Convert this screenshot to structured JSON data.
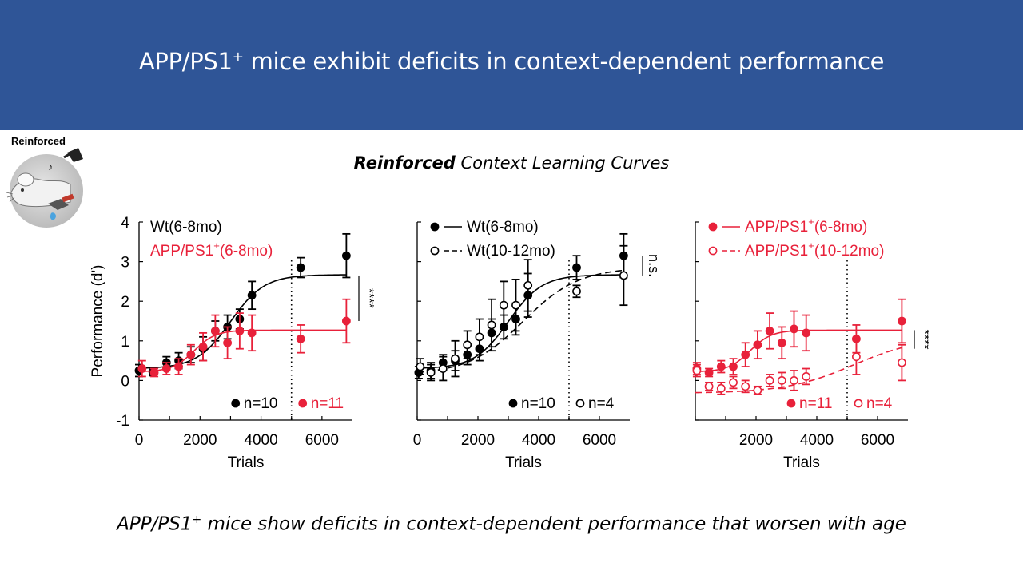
{
  "header": {
    "title_prefix": "APP/PS1",
    "title_sup": "+",
    "title_rest": " mice exhibit deficits in context-dependent performance"
  },
  "badge": {
    "label": "Reinforced",
    "icon": "mouse-licking-icon"
  },
  "subtitle": {
    "bold": "Reinforced",
    "rest": " Context Learning Curves"
  },
  "caption": {
    "prefix": "APP/PS1",
    "sup": "+",
    "rest": " mice show deficits in context-dependent performance that worsen with age"
  },
  "colors": {
    "banner": "#2f5597",
    "black": "#000000",
    "red": "#e8213a"
  },
  "chart_data": [
    {
      "type": "line",
      "panel": "left",
      "ylabel": "Performance (d')",
      "xlabel": "Trials",
      "xlim": [
        0,
        7000
      ],
      "ylim": [
        -1,
        4
      ],
      "xticks": [
        "0",
        "2000",
        "4000",
        "6000"
      ],
      "yticks": [
        "-1",
        "0",
        "1",
        "2",
        "3",
        "4"
      ],
      "vline_x": 5000,
      "legend": [
        {
          "label": "Wt(6-8mo)",
          "color": "#000000"
        },
        {
          "label": "APP/PS1",
          "sup": "+",
          "suffix": "(6-8mo)",
          "color": "#e8213a"
        }
      ],
      "n_labels": [
        {
          "text": "n=10",
          "color": "#000000",
          "marker": "filled"
        },
        {
          "text": "n=11",
          "color": "#e8213a",
          "marker": "filled"
        }
      ],
      "significance": "****",
      "series": [
        {
          "name": "Wt(6-8mo)",
          "color": "#000000",
          "filled": true,
          "x": [
            0,
            450,
            900,
            1300,
            1700,
            2100,
            2500,
            2900,
            3300,
            3700,
            5300,
            6800
          ],
          "y": [
            0.25,
            0.22,
            0.45,
            0.5,
            0.65,
            0.8,
            1.25,
            1.35,
            1.55,
            2.15,
            2.85,
            3.15
          ],
          "err": [
            0.15,
            0.1,
            0.15,
            0.2,
            0.2,
            0.3,
            0.25,
            0.3,
            0.25,
            0.35,
            0.25,
            0.55
          ],
          "fit": {
            "style": "solid",
            "base": 0.3,
            "top": 2.67,
            "mid": 3000,
            "k": 0.0018
          }
        },
        {
          "name": "APP/PS1+(6-8mo)",
          "color": "#e8213a",
          "filled": true,
          "x": [
            100,
            500,
            900,
            1300,
            1700,
            2100,
            2500,
            2900,
            3300,
            3700,
            5300,
            6800
          ],
          "y": [
            0.3,
            0.2,
            0.3,
            0.35,
            0.65,
            0.85,
            1.25,
            0.95,
            1.25,
            1.2,
            1.05,
            1.5
          ],
          "err": [
            0.2,
            0.1,
            0.15,
            0.2,
            0.25,
            0.35,
            0.4,
            0.4,
            0.45,
            0.45,
            0.35,
            0.55
          ],
          "fit": {
            "style": "solid",
            "base": 0.22,
            "top": 1.27,
            "mid": 1800,
            "k": 0.0028
          }
        }
      ]
    },
    {
      "type": "line",
      "panel": "middle",
      "xlabel": "Trials",
      "xlim": [
        0,
        7000
      ],
      "ylim": [
        -1,
        4
      ],
      "xticks": [
        "0",
        "2000",
        "4000",
        "6000"
      ],
      "vline_x": 5000,
      "legend": [
        {
          "label": "Wt(6-8mo)",
          "color": "#000000",
          "marker": "filled",
          "line": "solid"
        },
        {
          "label": "Wt(10-12mo)",
          "color": "#000000",
          "marker": "open",
          "line": "dashed"
        }
      ],
      "n_labels": [
        {
          "text": "n=10",
          "color": "#000000",
          "marker": "filled"
        },
        {
          "text": "n=4",
          "color": "#000000",
          "marker": "open"
        }
      ],
      "significance": "n.s.",
      "series": [
        {
          "name": "Wt(6-8mo)",
          "color": "#000000",
          "filled": true,
          "x": [
            50,
            450,
            850,
            1250,
            1650,
            2050,
            2450,
            2850,
            3250,
            3650,
            5250,
            6800
          ],
          "y": [
            0.2,
            0.25,
            0.45,
            0.5,
            0.65,
            0.8,
            1.2,
            1.35,
            1.55,
            2.15,
            2.85,
            3.15
          ],
          "err": [
            0.15,
            0.2,
            0.2,
            0.25,
            0.25,
            0.3,
            0.35,
            0.3,
            0.4,
            0.55,
            0.3,
            0.55
          ],
          "fit": {
            "style": "solid",
            "base": 0.3,
            "top": 2.67,
            "mid": 3000,
            "k": 0.0018
          }
        },
        {
          "name": "Wt(10-12mo)",
          "color": "#000000",
          "filled": false,
          "x": [
            100,
            450,
            850,
            1250,
            1650,
            2050,
            2450,
            2850,
            3250,
            3650,
            5250,
            6800
          ],
          "y": [
            0.35,
            0.2,
            0.3,
            0.55,
            0.9,
            1.1,
            1.4,
            1.9,
            1.9,
            2.4,
            2.25,
            2.65
          ],
          "err": [
            0.2,
            0.2,
            0.3,
            0.45,
            0.35,
            0.45,
            0.65,
            0.6,
            0.65,
            0.65,
            0.15,
            0.75
          ],
          "fit": {
            "style": "dashed",
            "base": 0.15,
            "top": 2.85,
            "mid": 3500,
            "k": 0.0011
          }
        }
      ]
    },
    {
      "type": "line",
      "panel": "right",
      "xlabel": "Trials",
      "xlim": [
        0,
        7000
      ],
      "ylim": [
        -1,
        4
      ],
      "xticks": [
        "2000",
        "4000",
        "6000"
      ],
      "vline_x": 5000,
      "legend": [
        {
          "label": "APP/PS1",
          "sup": "+",
          "suffix": "(6-8mo)",
          "color": "#e8213a",
          "marker": "filled",
          "line": "solid"
        },
        {
          "label": "APP/PS1",
          "sup": "+",
          "suffix": "(10-12mo)",
          "color": "#e8213a",
          "marker": "open",
          "line": "dashed"
        }
      ],
      "n_labels": [
        {
          "text": "n=11",
          "color": "#e8213a",
          "marker": "filled"
        },
        {
          "text": "n=4",
          "color": "#e8213a",
          "marker": "open"
        }
      ],
      "significance": "****",
      "series": [
        {
          "name": "APP/PS1+(6-8mo)",
          "color": "#e8213a",
          "filled": true,
          "x": [
            50,
            450,
            850,
            1250,
            1650,
            2050,
            2450,
            2850,
            3250,
            3650,
            5300,
            6800
          ],
          "y": [
            0.3,
            0.2,
            0.35,
            0.35,
            0.65,
            0.9,
            1.25,
            0.95,
            1.3,
            1.2,
            1.05,
            1.5
          ],
          "err": [
            0.15,
            0.1,
            0.15,
            0.2,
            0.3,
            0.35,
            0.45,
            0.4,
            0.45,
            0.45,
            0.35,
            0.55
          ],
          "fit": {
            "style": "solid",
            "base": 0.22,
            "top": 1.27,
            "mid": 1800,
            "k": 0.0028
          }
        },
        {
          "name": "APP/PS1+(10-12mo)",
          "color": "#e8213a",
          "filled": false,
          "x": [
            50,
            450,
            850,
            1250,
            1650,
            2050,
            2450,
            2850,
            3250,
            3650,
            5300,
            6800
          ],
          "y": [
            0.25,
            -0.15,
            -0.2,
            -0.05,
            -0.15,
            -0.25,
            0.0,
            0.0,
            0.0,
            0.1,
            0.6,
            0.45
          ],
          "err": [
            0.15,
            0.1,
            0.15,
            0.15,
            0.15,
            0.1,
            0.15,
            0.2,
            0.25,
            0.2,
            0.45,
            0.45
          ],
          "fit": {
            "style": "dashed",
            "base": -0.32,
            "top": 1.1,
            "mid": 5200,
            "k": 0.0009
          }
        }
      ]
    }
  ]
}
